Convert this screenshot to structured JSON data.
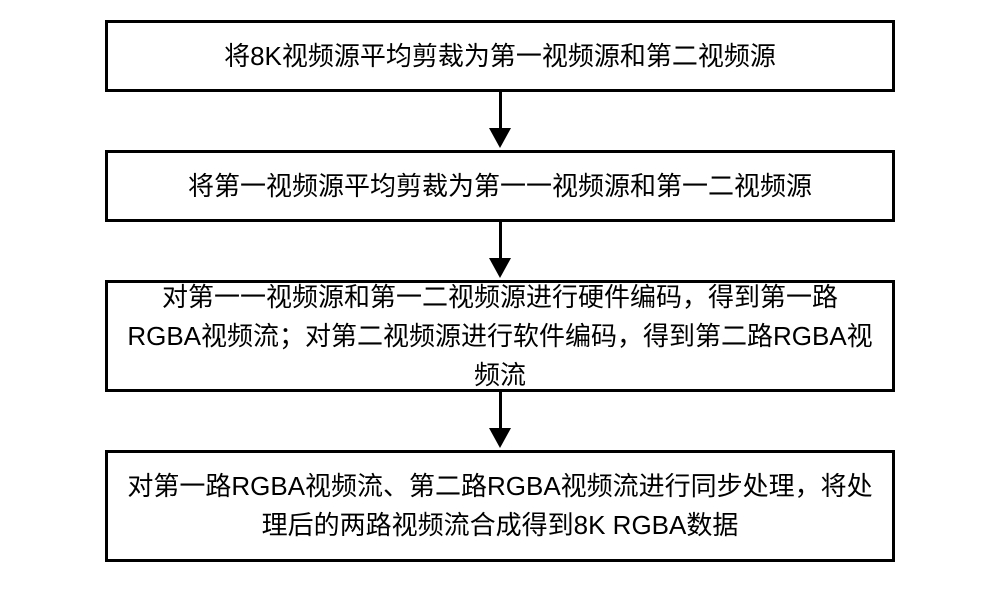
{
  "flowchart": {
    "type": "flowchart",
    "direction": "vertical",
    "background_color": "#ffffff",
    "box_border_color": "#000000",
    "box_border_width": 3,
    "arrow_color": "#000000",
    "font_family": "Microsoft YaHei",
    "font_size": 26,
    "font_weight": 500,
    "nodes": [
      {
        "id": "step1",
        "text": "将8K视频源平均剪裁为第一视频源和第二视频源",
        "lines": 1
      },
      {
        "id": "step2",
        "text": "将第一视频源平均剪裁为第一一视频源和第一二视频源",
        "lines": 1
      },
      {
        "id": "step3",
        "text": "对第一一视频源和第一二视频源进行硬件编码，得到第一路RGBA视频流；对第二视频源进行软件编码，得到第二路RGBA视频流",
        "lines": 2
      },
      {
        "id": "step4",
        "text": "对第一路RGBA视频流、第二路RGBA视频流进行同步处理，将处理后的两路视频流合成得到8K RGBA数据",
        "lines": 2
      }
    ],
    "edges": [
      {
        "from": "step1",
        "to": "step2"
      },
      {
        "from": "step2",
        "to": "step3"
      },
      {
        "from": "step3",
        "to": "step4"
      }
    ]
  }
}
